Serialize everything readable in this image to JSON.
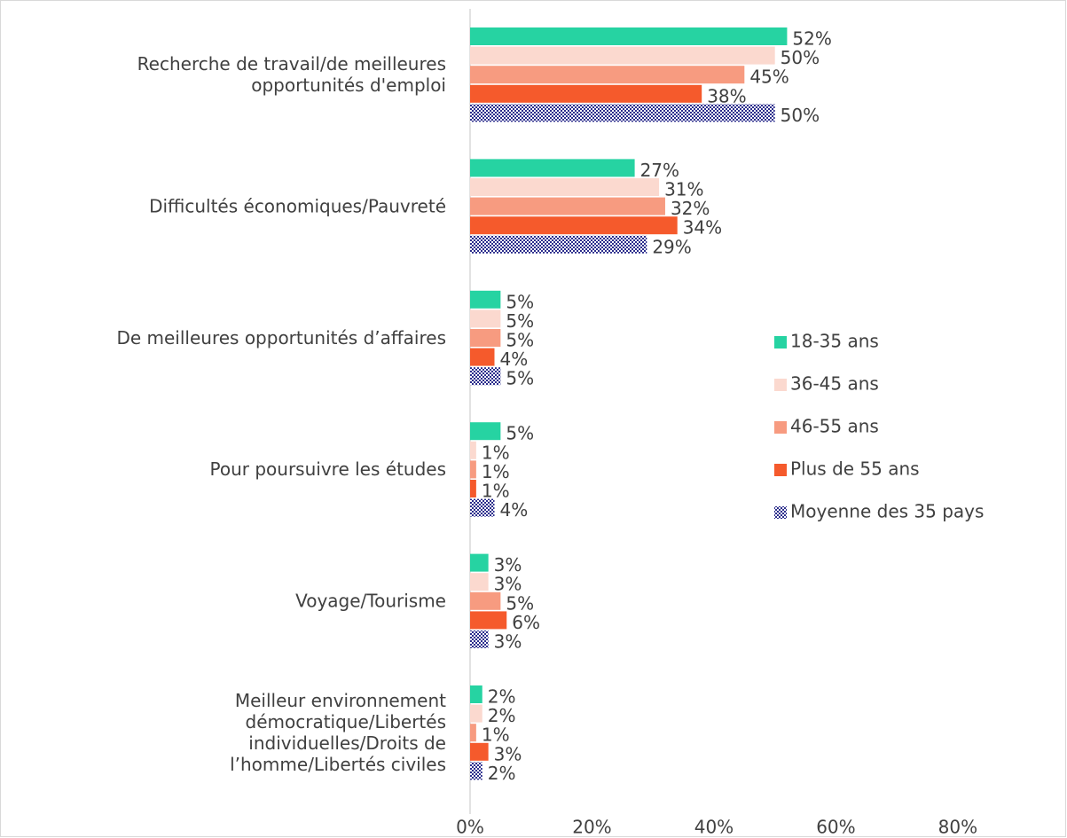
{
  "chart_data": {
    "type": "barh",
    "categories": [
      "Recherche de travail/de meilleures\nopportunités d'emploi",
      "Difficultés économiques/Pauvreté",
      "De meilleures opportunités d’affaires",
      "Pour poursuivre les études",
      "Voyage/Tourisme",
      "Meilleur environnement\ndémocratique/Libertés\nindividuelles/Droits de\nl’homme/Libertés civiles"
    ],
    "series": [
      {
        "name": "18-35 ans",
        "color": "#26d3a2",
        "values": [
          52,
          27,
          5,
          5,
          3,
          2
        ],
        "value_labels": [
          "52%",
          "27%",
          "5%",
          "5%",
          "3%",
          "2%"
        ]
      },
      {
        "name": "36-45 ans",
        "color": "#fbd9cf",
        "values": [
          50,
          31,
          5,
          1,
          3,
          2
        ],
        "value_labels": [
          "50%",
          "31%",
          "5%",
          "1%",
          "3%",
          "2%"
        ]
      },
      {
        "name": "46-55 ans",
        "color": "#f79b80",
        "values": [
          45,
          32,
          5,
          1,
          5,
          1
        ],
        "value_labels": [
          "45%",
          "32%",
          "5%",
          "1%",
          "5%",
          "1%"
        ]
      },
      {
        "name": "Plus de 55 ans",
        "color": "#f55a2c",
        "values": [
          38,
          34,
          4,
          1,
          6,
          3
        ],
        "value_labels": [
          "38%",
          "34%",
          "4%",
          "1%",
          "6%",
          "3%"
        ]
      },
      {
        "name": "Moyenne des 35 pays",
        "color": "#2b2d8c",
        "pattern": "checker",
        "values": [
          50,
          29,
          5,
          4,
          3,
          2
        ],
        "value_labels": [
          "50%",
          "29%",
          "5%",
          "4%",
          "3%",
          "2%"
        ]
      }
    ],
    "xlim": [
      0,
      95
    ],
    "xticks": [
      {
        "value": 0,
        "label": "0%"
      },
      {
        "value": 20,
        "label": "20%"
      },
      {
        "value": 40,
        "label": "40%"
      },
      {
        "value": 60,
        "label": "60%"
      },
      {
        "value": 80,
        "label": "80%"
      }
    ],
    "legend": "right"
  }
}
